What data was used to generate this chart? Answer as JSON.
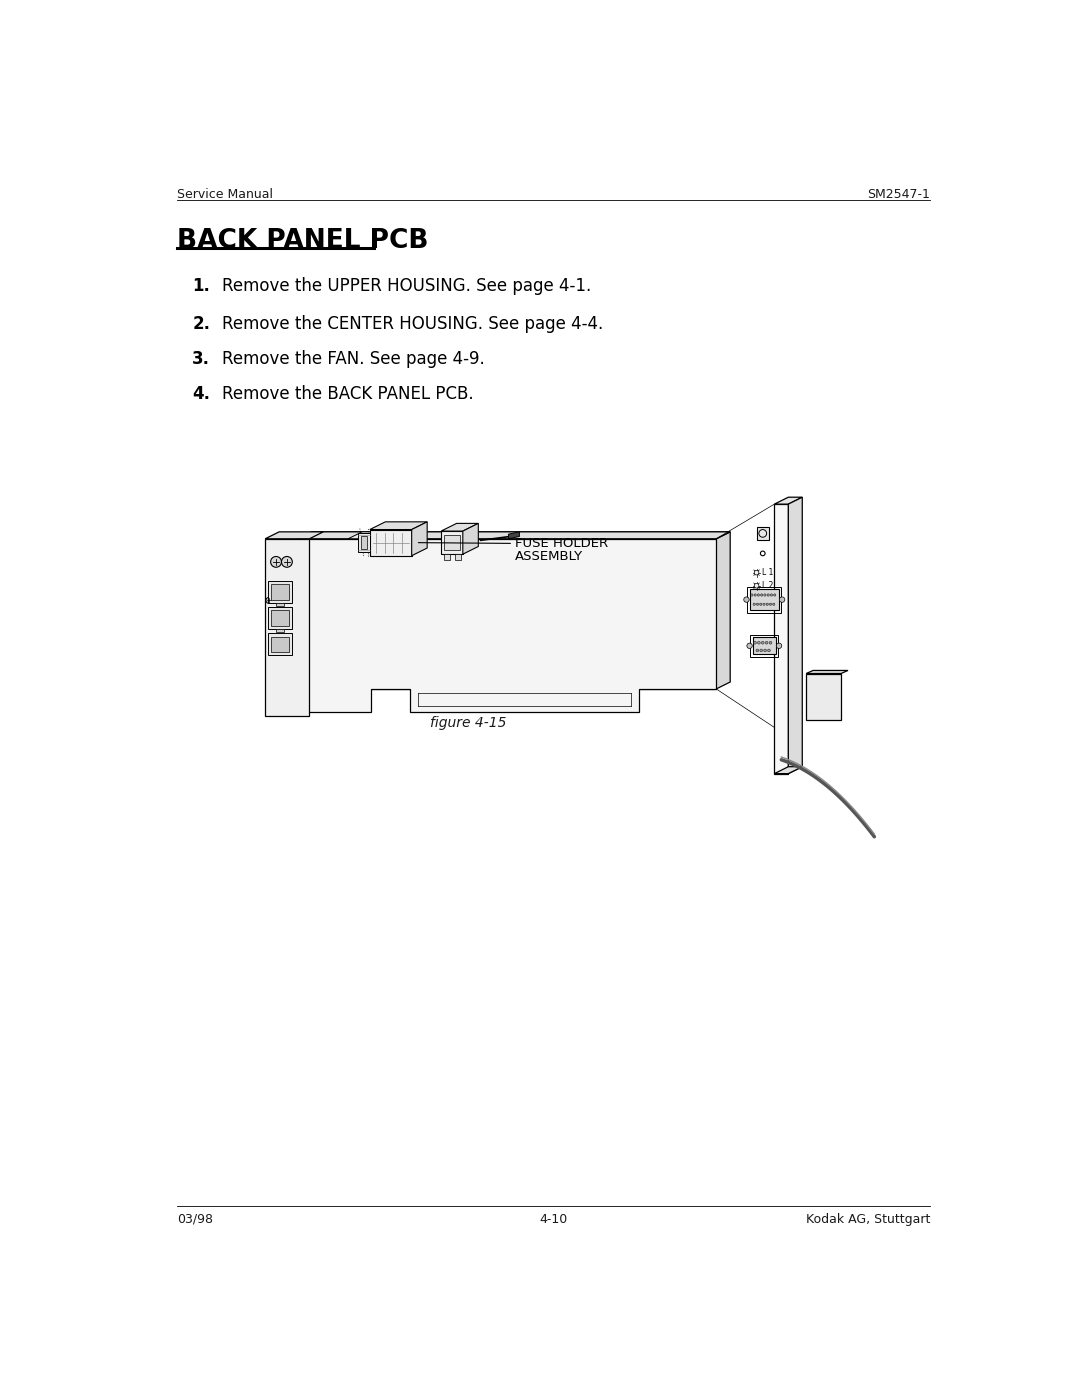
{
  "bg_color": "#ffffff",
  "header_left": "Service Manual",
  "header_right": "SM2547-1",
  "title": "BACK PANEL PCB",
  "steps": [
    {
      "num": "1",
      "text": "Remove the UPPER HOUSING. See page 4-1."
    },
    {
      "num": "2",
      "text": "Remove the CENTER HOUSING. See page 4-4."
    },
    {
      "num": "3",
      "text": "Remove the FAN. See page 4-9."
    },
    {
      "num": "4",
      "text": "Remove the BACK PANEL PCB."
    }
  ],
  "figure_caption": "figure 4-15",
  "footer_left": "03/98",
  "footer_center": "4-10",
  "footer_right": "Kodak AG, Stuttgart",
  "line_color": "#000000",
  "text_color": "#1a1a1a",
  "lw_main": 0.9,
  "lw_thin": 0.5,
  "lw_dotted": 0.5
}
